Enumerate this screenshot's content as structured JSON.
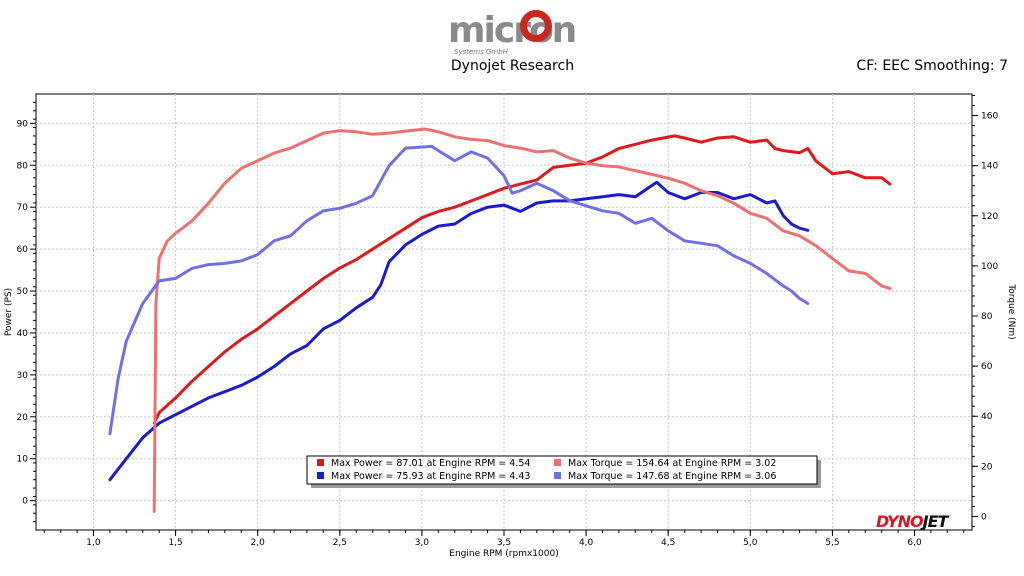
{
  "header": {
    "logo_text": "micron",
    "logo_subtext": "Systems GmbH",
    "title": "Dynojet Research",
    "correction": "CF: EEC Smoothing: 7"
  },
  "brand_mark": {
    "part1": "DYNO",
    "part2": "JET"
  },
  "colors": {
    "power_red": "#e01a1a",
    "power_blue": "#1a1ad2",
    "torque_red": "#ee7070",
    "torque_blue": "#7070e6",
    "grid": "#c8c8c8",
    "frame": "#000000"
  },
  "chart_data": {
    "type": "line",
    "title": "Dynojet Research",
    "xlabel": "Engine RPM (rpmx1000)",
    "ylabel_left": "Power (PS)",
    "ylabel_right": "Torque (Nm)",
    "xlim": [
      0.65,
      6.35
    ],
    "ylim_left": [
      -7,
      97
    ],
    "ylim_right": [
      -5.4,
      168.6
    ],
    "x_ticks": [
      "1,0",
      "1,5",
      "2,0",
      "2,5",
      "3,0",
      "3,5",
      "4,0",
      "4,5",
      "5,0",
      "5,5",
      "6,0"
    ],
    "y_ticks_left": [
      "0",
      "10",
      "20",
      "30",
      "40",
      "50",
      "60",
      "70",
      "80",
      "90"
    ],
    "y_ticks_right": [
      "0",
      "20",
      "40",
      "60",
      "80",
      "100",
      "120",
      "140",
      "160"
    ],
    "legend": [
      "Max Power = 87.01 at Engine RPM = 4.54",
      "Max Torque = 154.64 at Engine RPM = 3.02",
      "Max Power = 75.93 at Engine RPM = 4.43",
      "Max Torque = 147.68 at Engine RPM = 3.06"
    ],
    "series": [
      {
        "name": "Power run 1 (red)",
        "axis": "left",
        "points": [
          [
            1.37,
            18.5
          ],
          [
            1.4,
            21
          ],
          [
            1.5,
            24.5
          ],
          [
            1.6,
            28.5
          ],
          [
            1.7,
            32
          ],
          [
            1.8,
            35.5
          ],
          [
            1.9,
            38.5
          ],
          [
            2.0,
            41
          ],
          [
            2.1,
            44
          ],
          [
            2.2,
            47
          ],
          [
            2.3,
            50
          ],
          [
            2.4,
            53
          ],
          [
            2.5,
            55.5
          ],
          [
            2.6,
            57.5
          ],
          [
            2.7,
            60
          ],
          [
            2.8,
            62.5
          ],
          [
            2.9,
            65
          ],
          [
            3.0,
            67.5
          ],
          [
            3.1,
            69
          ],
          [
            3.2,
            70
          ],
          [
            3.3,
            71.5
          ],
          [
            3.4,
            73
          ],
          [
            3.5,
            74.5
          ],
          [
            3.6,
            75.5
          ],
          [
            3.7,
            76.5
          ],
          [
            3.8,
            79.5
          ],
          [
            3.9,
            80
          ],
          [
            4.0,
            80.5
          ],
          [
            4.1,
            82
          ],
          [
            4.2,
            84
          ],
          [
            4.3,
            85
          ],
          [
            4.4,
            86
          ],
          [
            4.54,
            87.01
          ],
          [
            4.6,
            86.5
          ],
          [
            4.7,
            85.5
          ],
          [
            4.8,
            86.5
          ],
          [
            4.9,
            86.8
          ],
          [
            5.0,
            85.5
          ],
          [
            5.1,
            86
          ],
          [
            5.15,
            84
          ],
          [
            5.2,
            83.5
          ],
          [
            5.3,
            83
          ],
          [
            5.35,
            84
          ],
          [
            5.4,
            81
          ],
          [
            5.5,
            78
          ],
          [
            5.6,
            78.5
          ],
          [
            5.7,
            77
          ],
          [
            5.8,
            77
          ],
          [
            5.85,
            75.5
          ]
        ]
      },
      {
        "name": "Power run 2 (blue)",
        "axis": "left",
        "points": [
          [
            1.1,
            5
          ],
          [
            1.2,
            10
          ],
          [
            1.3,
            15
          ],
          [
            1.4,
            18.5
          ],
          [
            1.5,
            20.5
          ],
          [
            1.6,
            22.5
          ],
          [
            1.7,
            24.5
          ],
          [
            1.8,
            26
          ],
          [
            1.9,
            27.5
          ],
          [
            2.0,
            29.5
          ],
          [
            2.1,
            32
          ],
          [
            2.2,
            35
          ],
          [
            2.3,
            37
          ],
          [
            2.4,
            41
          ],
          [
            2.5,
            43
          ],
          [
            2.6,
            46
          ],
          [
            2.7,
            48.5
          ],
          [
            2.75,
            51.5
          ],
          [
            2.8,
            57
          ],
          [
            2.9,
            61
          ],
          [
            3.0,
            63.5
          ],
          [
            3.1,
            65.5
          ],
          [
            3.2,
            66
          ],
          [
            3.3,
            68.5
          ],
          [
            3.4,
            70
          ],
          [
            3.5,
            70.5
          ],
          [
            3.6,
            69
          ],
          [
            3.7,
            71
          ],
          [
            3.8,
            71.5
          ],
          [
            3.9,
            71.5
          ],
          [
            4.0,
            72
          ],
          [
            4.1,
            72.5
          ],
          [
            4.2,
            73
          ],
          [
            4.3,
            72.5
          ],
          [
            4.43,
            75.93
          ],
          [
            4.5,
            73.5
          ],
          [
            4.6,
            72
          ],
          [
            4.7,
            73.5
          ],
          [
            4.8,
            73.5
          ],
          [
            4.9,
            72
          ],
          [
            5.0,
            73
          ],
          [
            5.1,
            71
          ],
          [
            5.15,
            71.5
          ],
          [
            5.2,
            68
          ],
          [
            5.25,
            66
          ],
          [
            5.3,
            65
          ],
          [
            5.35,
            64.5
          ]
        ]
      },
      {
        "name": "Torque run 1 (red)",
        "axis": "right",
        "points": [
          [
            1.37,
            2
          ],
          [
            1.38,
            85
          ],
          [
            1.4,
            103
          ],
          [
            1.45,
            110
          ],
          [
            1.5,
            113
          ],
          [
            1.6,
            118
          ],
          [
            1.7,
            125
          ],
          [
            1.8,
            133
          ],
          [
            1.9,
            139
          ],
          [
            2.0,
            142
          ],
          [
            2.1,
            145
          ],
          [
            2.2,
            147
          ],
          [
            2.3,
            150
          ],
          [
            2.4,
            153
          ],
          [
            2.5,
            154
          ],
          [
            2.6,
            153.5
          ],
          [
            2.7,
            152.5
          ],
          [
            2.8,
            153
          ],
          [
            2.9,
            153.8
          ],
          [
            3.02,
            154.64
          ],
          [
            3.1,
            153.5
          ],
          [
            3.2,
            151.5
          ],
          [
            3.3,
            150.5
          ],
          [
            3.4,
            150
          ],
          [
            3.5,
            148
          ],
          [
            3.6,
            147
          ],
          [
            3.7,
            145.5
          ],
          [
            3.8,
            146
          ],
          [
            3.9,
            143
          ],
          [
            4.0,
            141
          ],
          [
            4.1,
            140
          ],
          [
            4.2,
            139.5
          ],
          [
            4.3,
            138
          ],
          [
            4.4,
            136.5
          ],
          [
            4.5,
            135
          ],
          [
            4.6,
            133
          ],
          [
            4.7,
            130
          ],
          [
            4.8,
            128
          ],
          [
            4.9,
            125
          ],
          [
            5.0,
            121
          ],
          [
            5.1,
            119
          ],
          [
            5.2,
            114
          ],
          [
            5.3,
            112
          ],
          [
            5.4,
            108
          ],
          [
            5.5,
            103
          ],
          [
            5.6,
            98
          ],
          [
            5.7,
            97
          ],
          [
            5.8,
            92
          ],
          [
            5.85,
            91
          ]
        ]
      },
      {
        "name": "Torque run 2 (blue)",
        "axis": "right",
        "points": [
          [
            1.1,
            33
          ],
          [
            1.15,
            55
          ],
          [
            1.2,
            70
          ],
          [
            1.3,
            85
          ],
          [
            1.4,
            94
          ],
          [
            1.5,
            95
          ],
          [
            1.6,
            99
          ],
          [
            1.7,
            100.5
          ],
          [
            1.8,
            101
          ],
          [
            1.9,
            102
          ],
          [
            2.0,
            104.5
          ],
          [
            2.1,
            110
          ],
          [
            2.2,
            112
          ],
          [
            2.3,
            118
          ],
          [
            2.4,
            122
          ],
          [
            2.5,
            123
          ],
          [
            2.6,
            125
          ],
          [
            2.7,
            128
          ],
          [
            2.8,
            140
          ],
          [
            2.9,
            147
          ],
          [
            3.06,
            147.68
          ],
          [
            3.1,
            146
          ],
          [
            3.2,
            142
          ],
          [
            3.3,
            145.5
          ],
          [
            3.4,
            143
          ],
          [
            3.5,
            136
          ],
          [
            3.55,
            129
          ],
          [
            3.6,
            130
          ],
          [
            3.7,
            133
          ],
          [
            3.8,
            130
          ],
          [
            3.9,
            126
          ],
          [
            4.0,
            124
          ],
          [
            4.1,
            122
          ],
          [
            4.2,
            121
          ],
          [
            4.3,
            117
          ],
          [
            4.4,
            119
          ],
          [
            4.5,
            114
          ],
          [
            4.6,
            110
          ],
          [
            4.7,
            109
          ],
          [
            4.8,
            108
          ],
          [
            4.9,
            104
          ],
          [
            5.0,
            101
          ],
          [
            5.1,
            97
          ],
          [
            5.2,
            92
          ],
          [
            5.25,
            90
          ],
          [
            5.3,
            87
          ],
          [
            5.35,
            85
          ]
        ]
      }
    ]
  }
}
